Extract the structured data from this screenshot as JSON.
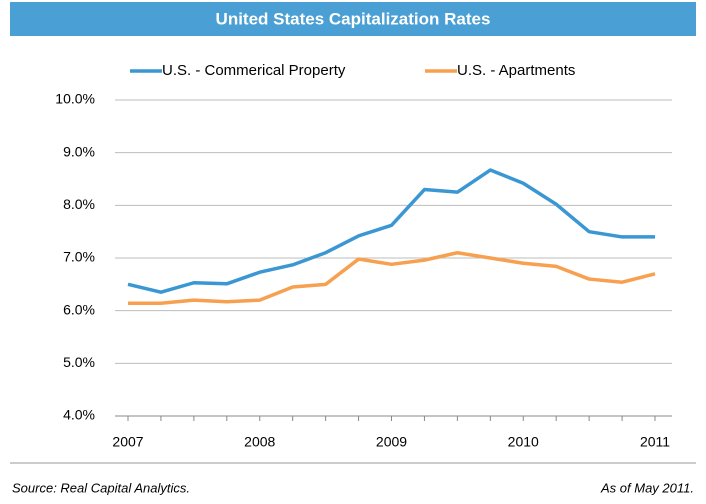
{
  "chart_data": {
    "type": "line",
    "title": "United States Capitalization Rates",
    "categories": [
      "2007",
      null,
      null,
      null,
      "2008",
      null,
      null,
      null,
      "2009",
      null,
      null,
      null,
      "2010",
      null,
      null,
      null,
      "2011"
    ],
    "series": [
      {
        "name": "U.S. - Commerical Property",
        "color": "#3a97d3",
        "values": [
          6.5,
          6.35,
          6.53,
          6.51,
          6.73,
          6.87,
          7.1,
          7.42,
          7.62,
          8.3,
          8.25,
          8.67,
          8.42,
          8.02,
          7.5,
          7.4,
          7.4
        ]
      },
      {
        "name": "U.S. - Apartments",
        "color": "#f7a04f",
        "values": [
          6.14,
          6.14,
          6.2,
          6.17,
          6.2,
          6.45,
          6.5,
          6.98,
          6.88,
          6.96,
          7.1,
          7.0,
          6.9,
          6.84,
          6.6,
          6.54,
          6.7
        ]
      }
    ],
    "ylim": [
      4,
      10
    ],
    "yticks": [
      {
        "value": 4,
        "label": "4.0%"
      },
      {
        "value": 5,
        "label": "5.0%"
      },
      {
        "value": 6,
        "label": "6.0%"
      },
      {
        "value": 7,
        "label": "7.0%"
      },
      {
        "value": 8,
        "label": "8.0%"
      },
      {
        "value": 9,
        "label": "9.0%"
      },
      {
        "value": 10,
        "label": "10.0%"
      }
    ],
    "grid": true,
    "legend": "top",
    "source": "Source: Real Capital Analytics.",
    "note": "As of May 2011."
  }
}
